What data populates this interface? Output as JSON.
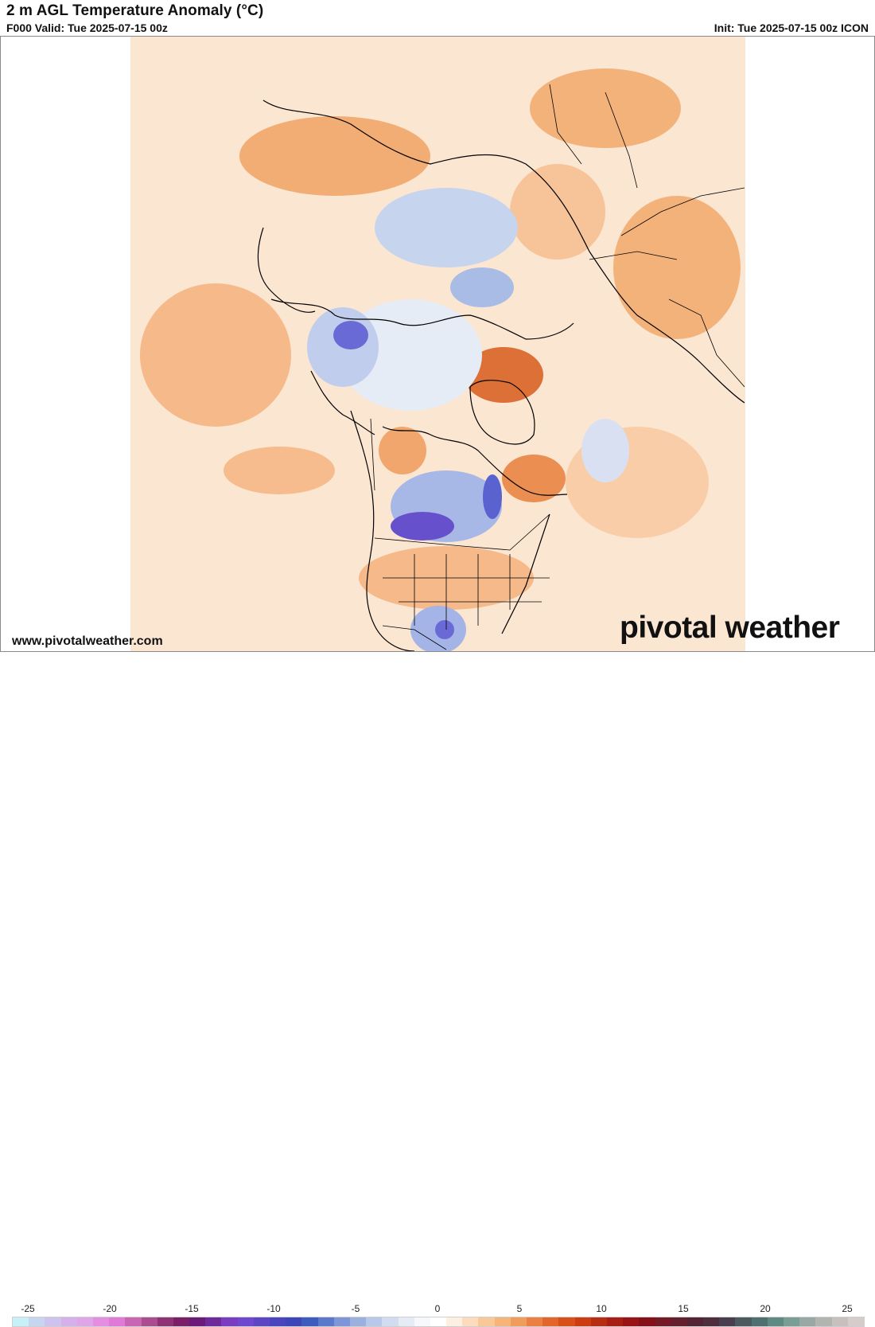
{
  "header": {
    "title": "2 m AGL Temperature Anomaly (°C)",
    "valid": "F000 Valid: Tue 2025-07-15 00z",
    "init": "Init: Tue 2025-07-15 00z ICON"
  },
  "footer": {
    "site_url": "www.pivotalweather.com",
    "brand_left": "pivot",
    "brand_right": "al weather"
  },
  "colorbar": {
    "labels": [
      "-25",
      "-20",
      "-15",
      "-10",
      "-5",
      "0",
      "5",
      "10",
      "15",
      "20",
      "25"
    ],
    "colors": [
      "#c8f0f8",
      "#c6d6f0",
      "#cfc2ee",
      "#d6b0ea",
      "#e0a4e8",
      "#e48ee2",
      "#e07ad6",
      "#c866b4",
      "#aa4c90",
      "#8e3276",
      "#7a1e68",
      "#6a1a78",
      "#6e2a9a",
      "#7a3cc0",
      "#7048d0",
      "#5c46c4",
      "#4a44c0",
      "#3c46b8",
      "#3c5cc0",
      "#5a78cc",
      "#7c96d8",
      "#9cb0e0",
      "#b8c8ea",
      "#d2dcf0",
      "#e6ecf6",
      "#f6f8fc",
      "#ffffff",
      "#fef0e0",
      "#fcdcbc",
      "#f8c896",
      "#f6b478",
      "#f29c5c",
      "#ec8040",
      "#e2662a",
      "#d85018",
      "#cc3c10",
      "#b82c12",
      "#a81e14",
      "#981216",
      "#861018",
      "#741a26",
      "#64202c",
      "#542434",
      "#4e2e3c",
      "#4a3e4e",
      "#4a5a5e",
      "#4e7070",
      "#5e8a84",
      "#7a9e96",
      "#98a8a4",
      "#b2b4b0",
      "#c8c0bc",
      "#d8ccca"
    ]
  },
  "map": {
    "colors": {
      "warm": "#f2a66a",
      "warm_light": "#fbd8b8",
      "hot": "#d65a1c",
      "cool": "#c2d0ee",
      "cool_light": "#e4eaf6",
      "cold": "#6a6ad6",
      "very_cold": "#5a3cc0",
      "border": "#000000"
    }
  }
}
